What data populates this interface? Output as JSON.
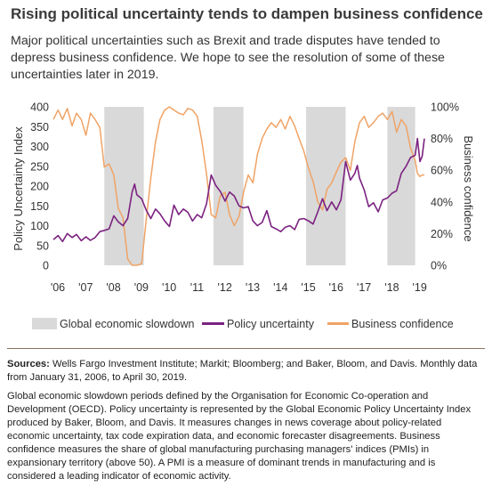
{
  "header": {
    "title": "Rising political uncertainty tends to dampen business confidence",
    "subtitle": "Major political uncertainties such as Brexit and trade disputes have tended to depress business confidence. We hope to see the resolution of some of these uncertainties later in 2019."
  },
  "chart_data": {
    "type": "line",
    "ylabel": "Policy Uncertainty Index",
    "ylabel_right": "Business confidence",
    "ylim": [
      0,
      400
    ],
    "y_ticks": [
      "0",
      "50",
      "100",
      "150",
      "200",
      "250",
      "300",
      "350",
      "400"
    ],
    "ylim_right": [
      0,
      100
    ],
    "y_ticks_right": [
      "0%",
      "20%",
      "40%",
      "60%",
      "80%",
      "100%"
    ],
    "x_ticks": [
      "'06",
      "'07",
      "'08",
      "'09",
      "'10",
      "'11",
      "'12",
      "'13",
      "'14",
      "'15",
      "'16",
      "'17",
      "'18",
      "'19"
    ],
    "x_range": [
      2006.0,
      2019.33
    ],
    "legend_position": "bottom",
    "colors": {
      "shade": "#d9d9d9",
      "policy": "#7b2280",
      "business": "#f0a365"
    },
    "legend": {
      "shade": "Global economic slowdown",
      "policy": "Policy uncertainty",
      "business": "Business confidence"
    },
    "slowdowns": [
      [
        2007.83,
        2009.25
      ],
      [
        2011.75,
        2012.83
      ],
      [
        2015.08,
        2016.5
      ],
      [
        2018.0,
        2019.0
      ]
    ],
    "series": [
      {
        "name": "Policy uncertainty",
        "axis": "left",
        "points": [
          [
            2006.0,
            65
          ],
          [
            2006.17,
            75
          ],
          [
            2006.33,
            60
          ],
          [
            2006.5,
            80
          ],
          [
            2006.67,
            70
          ],
          [
            2006.83,
            78
          ],
          [
            2007.0,
            62
          ],
          [
            2007.17,
            72
          ],
          [
            2007.33,
            63
          ],
          [
            2007.5,
            70
          ],
          [
            2007.67,
            85
          ],
          [
            2007.83,
            88
          ],
          [
            2008.0,
            92
          ],
          [
            2008.17,
            125
          ],
          [
            2008.33,
            110
          ],
          [
            2008.5,
            100
          ],
          [
            2008.67,
            118
          ],
          [
            2008.83,
            185
          ],
          [
            2008.92,
            205
          ],
          [
            2009.0,
            178
          ],
          [
            2009.17,
            168
          ],
          [
            2009.33,
            140
          ],
          [
            2009.5,
            118
          ],
          [
            2009.67,
            142
          ],
          [
            2009.83,
            130
          ],
          [
            2010.0,
            112
          ],
          [
            2010.17,
            98
          ],
          [
            2010.33,
            152
          ],
          [
            2010.5,
            128
          ],
          [
            2010.67,
            142
          ],
          [
            2010.83,
            134
          ],
          [
            2011.0,
            112
          ],
          [
            2011.17,
            128
          ],
          [
            2011.33,
            120
          ],
          [
            2011.5,
            155
          ],
          [
            2011.67,
            228
          ],
          [
            2011.83,
            202
          ],
          [
            2012.0,
            186
          ],
          [
            2012.17,
            162
          ],
          [
            2012.33,
            185
          ],
          [
            2012.5,
            175
          ],
          [
            2012.67,
            150
          ],
          [
            2012.83,
            145
          ],
          [
            2013.0,
            148
          ],
          [
            2013.17,
            112
          ],
          [
            2013.33,
            100
          ],
          [
            2013.5,
            108
          ],
          [
            2013.67,
            138
          ],
          [
            2013.83,
            98
          ],
          [
            2014.0,
            92
          ],
          [
            2014.17,
            85
          ],
          [
            2014.33,
            96
          ],
          [
            2014.5,
            100
          ],
          [
            2014.67,
            90
          ],
          [
            2014.83,
            116
          ],
          [
            2015.0,
            118
          ],
          [
            2015.17,
            112
          ],
          [
            2015.33,
            104
          ],
          [
            2015.5,
            135
          ],
          [
            2015.67,
            168
          ],
          [
            2015.83,
            138
          ],
          [
            2016.0,
            160
          ],
          [
            2016.17,
            140
          ],
          [
            2016.33,
            165
          ],
          [
            2016.5,
            262
          ],
          [
            2016.67,
            215
          ],
          [
            2016.83,
            232
          ],
          [
            2016.92,
            252
          ],
          [
            2017.0,
            220
          ],
          [
            2017.17,
            190
          ],
          [
            2017.33,
            148
          ],
          [
            2017.5,
            158
          ],
          [
            2017.67,
            135
          ],
          [
            2017.83,
            165
          ],
          [
            2018.0,
            170
          ],
          [
            2018.17,
            182
          ],
          [
            2018.33,
            188
          ],
          [
            2018.5,
            232
          ],
          [
            2018.67,
            250
          ],
          [
            2018.83,
            272
          ],
          [
            2019.0,
            278
          ],
          [
            2019.08,
            320
          ],
          [
            2019.17,
            262
          ],
          [
            2019.25,
            275
          ],
          [
            2019.33,
            320
          ]
        ]
      },
      {
        "name": "Business confidence",
        "axis": "right",
        "points": [
          [
            2006.0,
            92
          ],
          [
            2006.17,
            98
          ],
          [
            2006.33,
            92
          ],
          [
            2006.5,
            99
          ],
          [
            2006.67,
            88
          ],
          [
            2006.83,
            96
          ],
          [
            2007.0,
            92
          ],
          [
            2007.17,
            82
          ],
          [
            2007.33,
            96
          ],
          [
            2007.5,
            92
          ],
          [
            2007.67,
            87
          ],
          [
            2007.83,
            62
          ],
          [
            2008.0,
            64
          ],
          [
            2008.17,
            57
          ],
          [
            2008.33,
            36
          ],
          [
            2008.5,
            30
          ],
          [
            2008.67,
            4
          ],
          [
            2008.83,
            0
          ],
          [
            2009.0,
            0
          ],
          [
            2009.17,
            1
          ],
          [
            2009.33,
            28
          ],
          [
            2009.5,
            55
          ],
          [
            2009.67,
            78
          ],
          [
            2009.83,
            92
          ],
          [
            2010.0,
            98
          ],
          [
            2010.17,
            100
          ],
          [
            2010.33,
            98
          ],
          [
            2010.5,
            96
          ],
          [
            2010.67,
            95
          ],
          [
            2010.83,
            99
          ],
          [
            2011.0,
            98
          ],
          [
            2011.17,
            94
          ],
          [
            2011.33,
            79
          ],
          [
            2011.5,
            58
          ],
          [
            2011.67,
            32
          ],
          [
            2011.83,
            30
          ],
          [
            2012.0,
            44
          ],
          [
            2012.17,
            46
          ],
          [
            2012.33,
            32
          ],
          [
            2012.5,
            25
          ],
          [
            2012.67,
            31
          ],
          [
            2012.83,
            46
          ],
          [
            2013.0,
            57
          ],
          [
            2013.17,
            52
          ],
          [
            2013.33,
            70
          ],
          [
            2013.5,
            80
          ],
          [
            2013.67,
            86
          ],
          [
            2013.83,
            90
          ],
          [
            2014.0,
            87
          ],
          [
            2014.17,
            92
          ],
          [
            2014.33,
            86
          ],
          [
            2014.5,
            94
          ],
          [
            2014.67,
            88
          ],
          [
            2014.83,
            80
          ],
          [
            2015.0,
            72
          ],
          [
            2015.17,
            61
          ],
          [
            2015.33,
            53
          ],
          [
            2015.5,
            40
          ],
          [
            2015.67,
            35
          ],
          [
            2015.83,
            48
          ],
          [
            2016.0,
            52
          ],
          [
            2016.17,
            59
          ],
          [
            2016.33,
            65
          ],
          [
            2016.5,
            68
          ],
          [
            2016.67,
            60
          ],
          [
            2016.83,
            78
          ],
          [
            2017.0,
            90
          ],
          [
            2017.17,
            94
          ],
          [
            2017.33,
            87
          ],
          [
            2017.5,
            90
          ],
          [
            2017.67,
            94
          ],
          [
            2017.83,
            96
          ],
          [
            2018.0,
            92
          ],
          [
            2018.17,
            97
          ],
          [
            2018.33,
            84
          ],
          [
            2018.5,
            92
          ],
          [
            2018.67,
            88
          ],
          [
            2018.83,
            74
          ],
          [
            2019.0,
            66
          ],
          [
            2019.08,
            58
          ],
          [
            2019.17,
            56
          ],
          [
            2019.25,
            57
          ],
          [
            2019.33,
            57
          ]
        ]
      }
    ]
  },
  "footer": {
    "sources_label": "Sources:",
    "sources_text": " Wells Fargo Investment Institute; Markit; Bloomberg; and Baker, Bloom, and Davis. Monthly data from January 31, 2006, to April 30, 2019.",
    "notes": "Global economic slowdown periods defined by the Organisation for Economic Co-operation and Development (OECD). Policy uncertainty is represented by the Global Economic Policy Uncertainty Index produced by Baker, Bloom, and Davis. It measures changes in news coverage about policy-related economic uncertainty, tax code expiration data, and economic forecaster disagreements. Business confidence measures the share of global manufacturing purchasing managers' indices (PMIs) in expansionary territory (above 50). A PMI is a measure of dominant trends in manufacturing and is considered a leading indicator of economic activity."
  }
}
